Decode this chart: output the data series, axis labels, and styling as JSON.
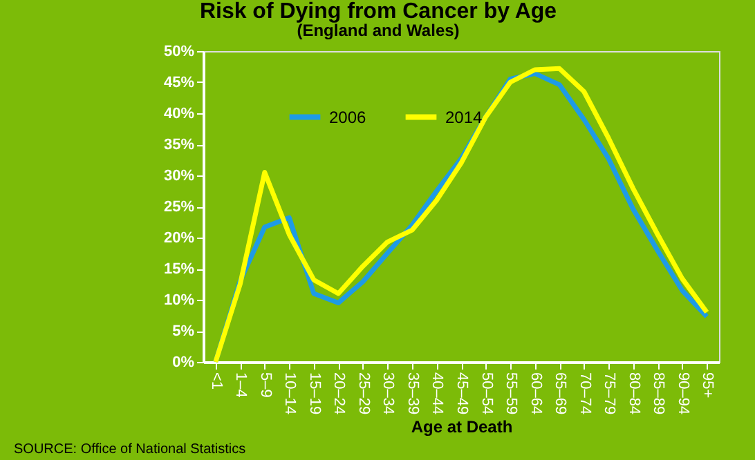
{
  "chart_data": {
    "type": "line",
    "title": "Risk of Dying from Cancer by Age",
    "subtitle": "(England and Wales)",
    "xlabel": "Age at Death",
    "categories": [
      "<1",
      "1–4",
      "5–9",
      "10–14",
      "15–19",
      "20–24",
      "25–29",
      "30–34",
      "35–39",
      "40–44",
      "45–49",
      "50–54",
      "55–59",
      "60–64",
      "65–69",
      "70–74",
      "75–79",
      "80–84",
      "85–89",
      "90–94",
      "95+"
    ],
    "series": [
      {
        "name": "2006",
        "color": "#1e9be6",
        "values": [
          0,
          13,
          21.7,
          23.2,
          11,
          9.5,
          12.9,
          17.5,
          22,
          27.5,
          32.7,
          39.4,
          45.5,
          46.4,
          44.6,
          39,
          32.7,
          24.6,
          17.9,
          11.5,
          7.3
        ]
      },
      {
        "name": "2014",
        "color": "#ffff00",
        "values": [
          0,
          12.5,
          30.5,
          20.5,
          13.2,
          11,
          15.4,
          19.3,
          21.2,
          26,
          32,
          39.4,
          45,
          47,
          47.2,
          43.5,
          36,
          27.9,
          20.5,
          13.4,
          8
        ]
      }
    ],
    "ylim": [
      0,
      50
    ],
    "yticks": [
      {
        "value": 0,
        "label": "0%"
      },
      {
        "value": 5,
        "label": "5%"
      },
      {
        "value": 10,
        "label": "10%"
      },
      {
        "value": 15,
        "label": "15%"
      },
      {
        "value": 20,
        "label": "20%"
      },
      {
        "value": 25,
        "label": "25%"
      },
      {
        "value": 30,
        "label": "30%"
      },
      {
        "value": 35,
        "label": "35%"
      },
      {
        "value": 40,
        "label": "40%"
      },
      {
        "value": 45,
        "label": "45%"
      },
      {
        "value": 50,
        "label": "50%"
      }
    ],
    "grid": false,
    "legend": "top left",
    "marker": "none",
    "line_style": "solid",
    "annotations": [
      "SOURCE: Office of National Statistics"
    ]
  }
}
